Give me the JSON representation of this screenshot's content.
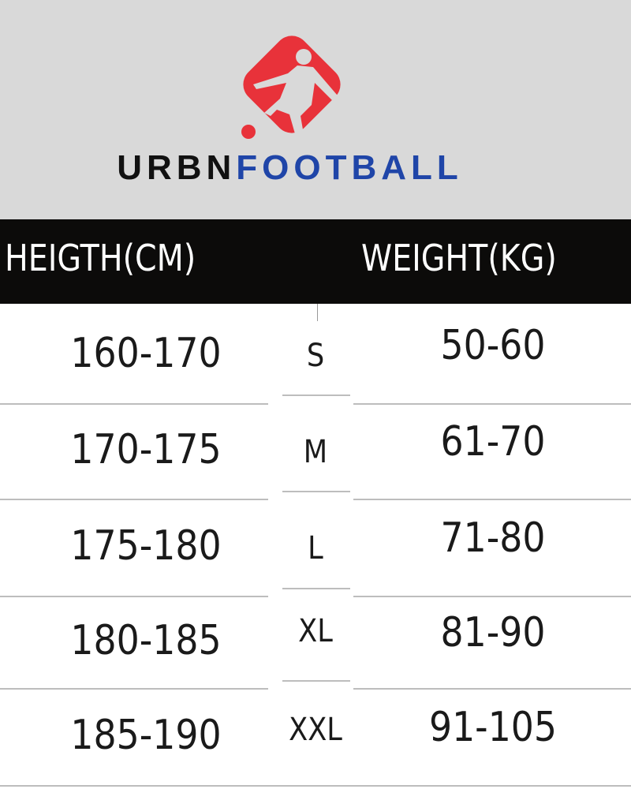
{
  "brand": {
    "part1": "URBN",
    "part2": "FOOTBALL",
    "logo_icon": "football-player-kicking-icon",
    "colors": {
      "logo": "#e8323a",
      "part1": "#111111",
      "part2": "#1f45a8"
    }
  },
  "table": {
    "headers": [
      "HEIGTH(CM)",
      "WEIGHT(KG)"
    ],
    "rows": [
      {
        "height": "160-170",
        "size": "S",
        "weight": "50-60"
      },
      {
        "height": "170-175",
        "size": "M",
        "weight": "61-70"
      },
      {
        "height": "175-180",
        "size": "L",
        "weight": "71-80"
      },
      {
        "height": "180-185",
        "size": "XL",
        "weight": "81-90"
      },
      {
        "height": "185-190",
        "size": "XXL",
        "weight": "91-105"
      }
    ]
  }
}
